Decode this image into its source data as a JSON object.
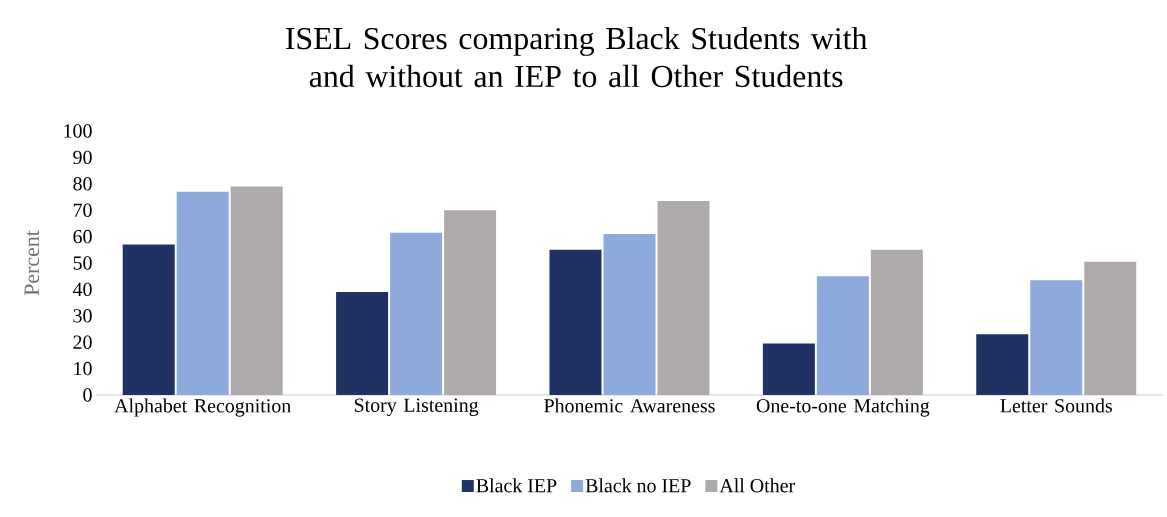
{
  "chart_data": {
    "type": "bar",
    "title": "ISEL Scores comparing Black Students with and without an IEP to all Other Students",
    "ylabel": "Percent",
    "categories": [
      "Alphabet Recognition",
      "Story Listening",
      "Phonemic Awareness",
      "One-to-one Matching",
      "Letter Sounds"
    ],
    "series": [
      {
        "name": "Black IEP",
        "color": "#203264",
        "values": [
          57,
          39,
          55,
          19.5,
          23
        ]
      },
      {
        "name": "Black no IEP",
        "color": "#8ea9dc",
        "values": [
          77,
          61.5,
          61,
          45,
          43.5
        ]
      },
      {
        "name": "All Other",
        "color": "#aeaaaa",
        "values": [
          79,
          70,
          73.5,
          55,
          50.5
        ]
      }
    ],
    "ylim": [
      0,
      100
    ],
    "yticks": [
      0,
      10,
      20,
      30,
      40,
      50,
      60,
      70,
      80,
      90,
      100
    ],
    "legend": "bottom"
  }
}
